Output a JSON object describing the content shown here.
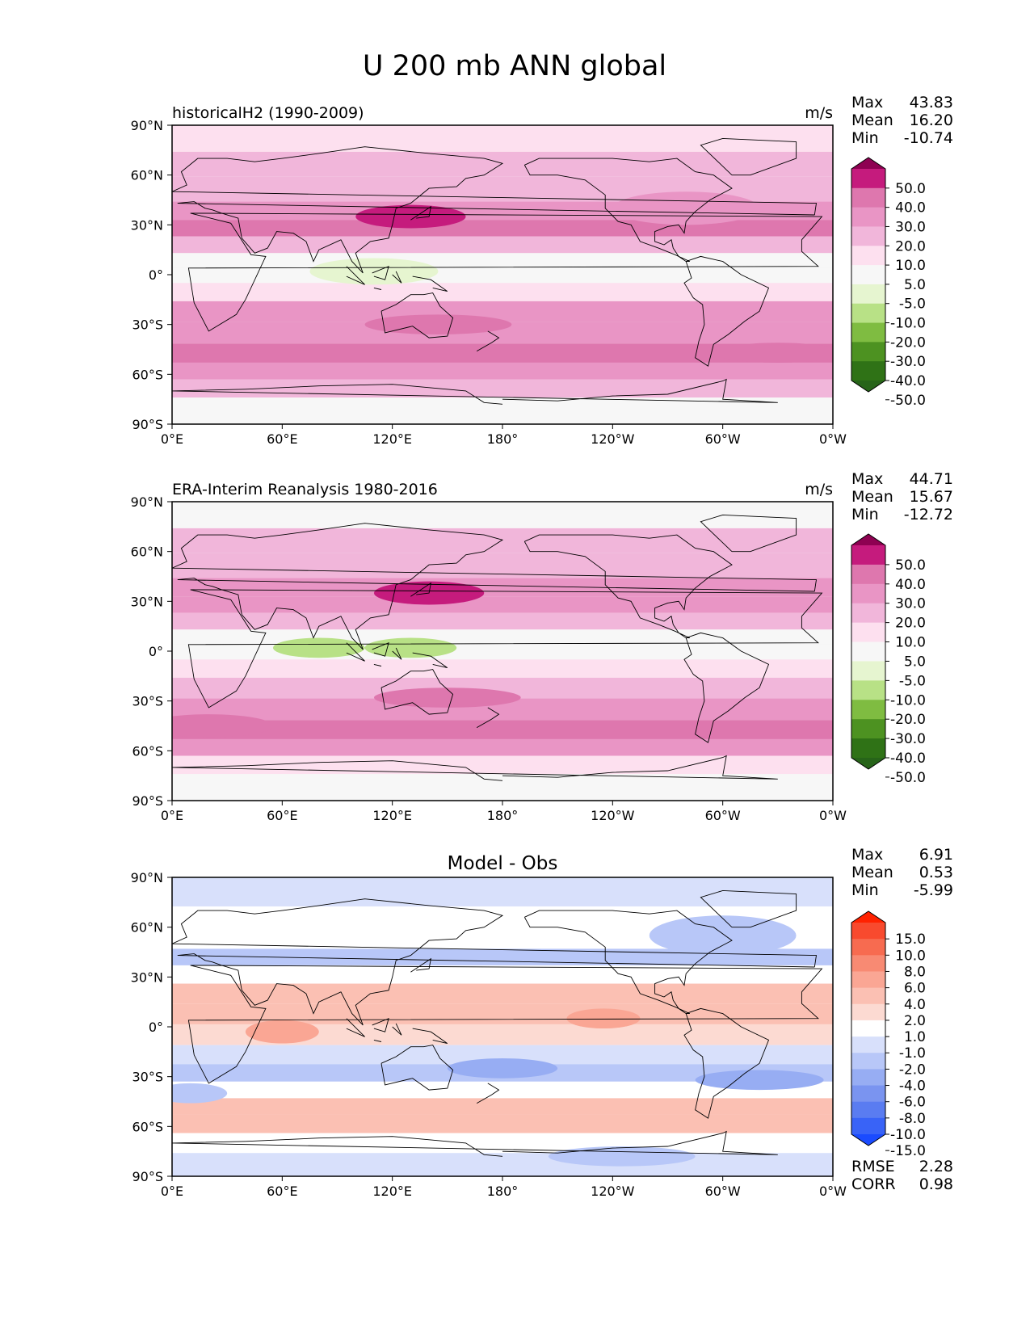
{
  "title": "U 200 mb ANN global",
  "colors": {
    "land_line": "#000000",
    "bg_panel": "#f7f7f7"
  },
  "chart_data": [
    {
      "type": "heatmap",
      "panel": "test",
      "title": "historicalH2 (1990-2009)",
      "units": "m/s",
      "stats": {
        "labels": [
          "Max",
          "Mean",
          "Min"
        ],
        "values": [
          "43.83",
          "16.20",
          "-10.74"
        ]
      },
      "xticks": [
        "0°E",
        "60°E",
        "120°E",
        "180°",
        "120°W",
        "60°W",
        "0°W"
      ],
      "yticks": [
        "90°N",
        "60°N",
        "30°N",
        "0°",
        "30°S",
        "60°S",
        "90°S"
      ],
      "xlim": [
        0,
        360
      ],
      "ylim": [
        -90,
        90
      ],
      "levels": [
        "50.0",
        "40.0",
        "30.0",
        "20.0",
        "10.0",
        "5.0",
        "-5.0",
        "-10.0",
        "-20.0",
        "-30.0",
        "-40.0",
        "-50.0"
      ],
      "colorbar_colors": [
        "#8e0152",
        "#c51b7d",
        "#de77ae",
        "#e995c5",
        "#f1b6da",
        "#fde0ef",
        "#f7f7f7",
        "#e6f5d0",
        "#b8e186",
        "#7fbc41",
        "#4d9221",
        "#2f7216",
        "#276419"
      ],
      "bands": [
        {
          "lat": 80,
          "value": 5
        },
        {
          "lat": 68,
          "value": 10
        },
        {
          "lat": 50,
          "value": 18
        },
        {
          "lat": 38,
          "value": 25
        },
        {
          "lat": 28,
          "value": 30
        },
        {
          "lat": 18,
          "value": 15
        },
        {
          "lat": 8,
          "value": 3
        },
        {
          "lat": 0,
          "value": -3
        },
        {
          "lat": -10,
          "value": 8
        },
        {
          "lat": -22,
          "value": 20
        },
        {
          "lat": -35,
          "value": 28
        },
        {
          "lat": -48,
          "value": 30
        },
        {
          "lat": -58,
          "value": 20
        },
        {
          "lat": -68,
          "value": 10
        },
        {
          "lat": -80,
          "value": 3
        }
      ],
      "blobs": [
        {
          "lon": 130,
          "lat": 35,
          "rx": 30,
          "ry": 7,
          "value": 42
        },
        {
          "lon": 110,
          "lat": 2,
          "rx": 35,
          "ry": 8,
          "value": -8
        },
        {
          "lon": 145,
          "lat": -30,
          "rx": 40,
          "ry": 6,
          "value": 33
        },
        {
          "lon": 330,
          "lat": -47,
          "rx": 35,
          "ry": 6,
          "value": 34
        },
        {
          "lon": 280,
          "lat": 40,
          "rx": 40,
          "ry": 10,
          "value": 22
        }
      ]
    },
    {
      "type": "heatmap",
      "panel": "reference",
      "title": "ERA-Interim Reanalysis 1980-2016",
      "units": "m/s",
      "stats": {
        "labels": [
          "Max",
          "Mean",
          "Min"
        ],
        "values": [
          "44.71",
          "15.67",
          "-12.72"
        ]
      },
      "xticks": [
        "0°E",
        "60°E",
        "120°E",
        "180°",
        "120°W",
        "60°W",
        "0°W"
      ],
      "yticks": [
        "90°N",
        "60°N",
        "30°N",
        "0°",
        "30°S",
        "60°S",
        "90°S"
      ],
      "xlim": [
        0,
        360
      ],
      "ylim": [
        -90,
        90
      ],
      "levels": [
        "50.0",
        "40.0",
        "30.0",
        "20.0",
        "10.0",
        "5.0",
        "-5.0",
        "-10.0",
        "-20.0",
        "-30.0",
        "-40.0",
        "-50.0"
      ],
      "colorbar_colors": [
        "#8e0152",
        "#c51b7d",
        "#de77ae",
        "#e995c5",
        "#f1b6da",
        "#fde0ef",
        "#f7f7f7",
        "#e6f5d0",
        "#b8e186",
        "#7fbc41",
        "#4d9221",
        "#2f7216",
        "#276419"
      ],
      "bands": [
        {
          "lat": 80,
          "value": 3
        },
        {
          "lat": 68,
          "value": 10
        },
        {
          "lat": 50,
          "value": 18
        },
        {
          "lat": 38,
          "value": 26
        },
        {
          "lat": 28,
          "value": 28
        },
        {
          "lat": 18,
          "value": 12
        },
        {
          "lat": 8,
          "value": 2
        },
        {
          "lat": 0,
          "value": -4
        },
        {
          "lat": -10,
          "value": 6
        },
        {
          "lat": -22,
          "value": 18
        },
        {
          "lat": -35,
          "value": 28
        },
        {
          "lat": -48,
          "value": 30
        },
        {
          "lat": -58,
          "value": 22
        },
        {
          "lat": -68,
          "value": 8
        },
        {
          "lat": -80,
          "value": 2
        }
      ],
      "blobs": [
        {
          "lon": 140,
          "lat": 35,
          "rx": 30,
          "ry": 7,
          "value": 42
        },
        {
          "lon": 80,
          "lat": 2,
          "rx": 25,
          "ry": 6,
          "value": -14
        },
        {
          "lon": 130,
          "lat": 2,
          "rx": 25,
          "ry": 6,
          "value": -12
        },
        {
          "lon": 150,
          "lat": -28,
          "rx": 40,
          "ry": 6,
          "value": 33
        },
        {
          "lon": 20,
          "lat": -45,
          "rx": 35,
          "ry": 7,
          "value": 34
        }
      ]
    },
    {
      "type": "heatmap",
      "panel": "diff",
      "title": "Model - Obs",
      "units": "",
      "stats": {
        "labels": [
          "Max",
          "Mean",
          "Min"
        ],
        "values": [
          "6.91",
          "0.53",
          "-5.99"
        ]
      },
      "metrics": {
        "labels": [
          "RMSE",
          "CORR"
        ],
        "values": [
          "2.28",
          "0.98"
        ]
      },
      "xticks": [
        "0°E",
        "60°E",
        "120°E",
        "180°",
        "120°W",
        "60°W",
        "0°W"
      ],
      "yticks": [
        "90°N",
        "60°N",
        "30°N",
        "0°",
        "30°S",
        "60°S",
        "90°S"
      ],
      "xlim": [
        0,
        360
      ],
      "ylim": [
        -90,
        90
      ],
      "levels": [
        "15.0",
        "10.0",
        "8.0",
        "6.0",
        "4.0",
        "2.0",
        "1.0",
        "-1.0",
        "-2.0",
        "-4.0",
        "-6.0",
        "-8.0",
        "-10.0",
        "-15.0"
      ],
      "colorbar_colors": [
        "#ff2200",
        "#f84a2e",
        "#f76b50",
        "#f88a73",
        "#faa694",
        "#fbc0b3",
        "#fcdad2",
        "#ffffff",
        "#d8e0fb",
        "#b8c7f8",
        "#97adf3",
        "#7a94f0",
        "#5a7cf1",
        "#3963f7",
        "#1a4bff"
      ],
      "bands": [
        {
          "lat": 80,
          "value": -2
        },
        {
          "lat": 65,
          "value": -1
        },
        {
          "lat": 52,
          "value": 0
        },
        {
          "lat": 42,
          "value": -2.5
        },
        {
          "lat": 32,
          "value": 0.5
        },
        {
          "lat": 20,
          "value": 2.5
        },
        {
          "lat": 8,
          "value": 3
        },
        {
          "lat": -5,
          "value": 1.5
        },
        {
          "lat": -17,
          "value": -2
        },
        {
          "lat": -28,
          "value": -3
        },
        {
          "lat": -38,
          "value": 0.5
        },
        {
          "lat": -48,
          "value": 2.5
        },
        {
          "lat": -58,
          "value": 2
        },
        {
          "lat": -70,
          "value": 0.5
        },
        {
          "lat": -82,
          "value": -1.5
        }
      ],
      "blobs": [
        {
          "lon": 235,
          "lat": 5,
          "rx": 20,
          "ry": 6,
          "value": 5
        },
        {
          "lon": 60,
          "lat": -3,
          "rx": 20,
          "ry": 7,
          "value": 4.5
        },
        {
          "lon": 300,
          "lat": 55,
          "rx": 40,
          "ry": 12,
          "value": -4
        },
        {
          "lon": 180,
          "lat": -25,
          "rx": 30,
          "ry": 6,
          "value": -5
        },
        {
          "lon": 320,
          "lat": -32,
          "rx": 35,
          "ry": 6,
          "value": -5
        },
        {
          "lon": 10,
          "lat": -40,
          "rx": 20,
          "ry": 6,
          "value": -4
        },
        {
          "lon": 245,
          "lat": -78,
          "rx": 40,
          "ry": 6,
          "value": -3
        }
      ]
    }
  ]
}
